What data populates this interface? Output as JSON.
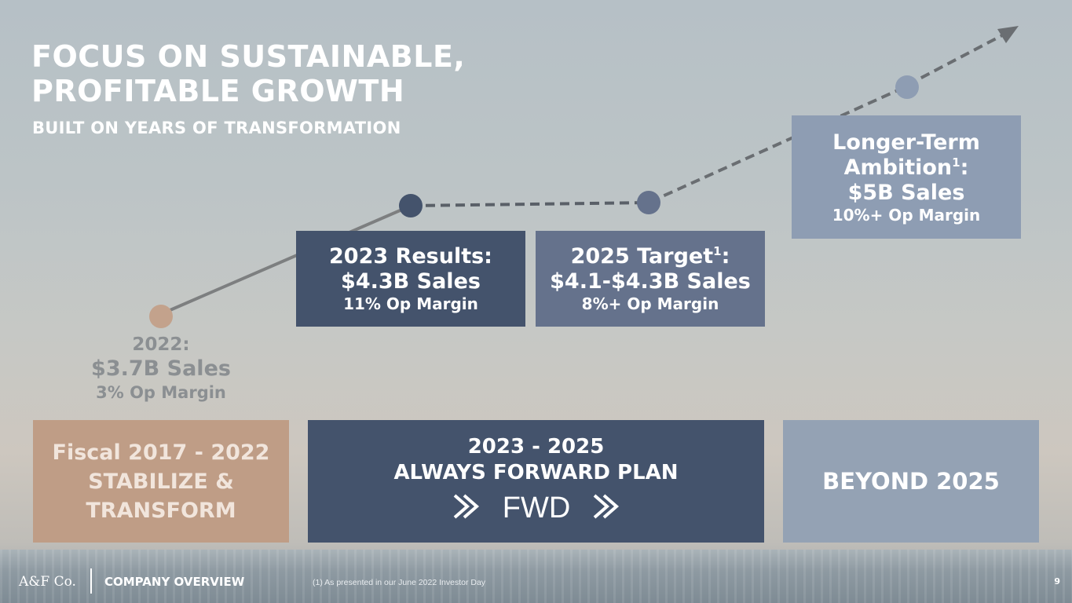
{
  "header": {
    "title_line1": "FOCUS ON SUSTAINABLE,",
    "title_line2": "PROFITABLE GROWTH",
    "subtitle": "BUILT ON YEARS OF TRANSFORMATION"
  },
  "milestones": {
    "y2022": {
      "label": "2022:",
      "sales": "$3.7B Sales",
      "margin": "3% Op Margin"
    },
    "y2023": {
      "label": "2023 Results:",
      "sales": "$4.3B Sales",
      "margin": "11% Op Margin"
    },
    "y2025": {
      "label": "2025 Target",
      "footnote_ref": "1",
      "label_suffix": ":",
      "sales": "$4.1-$4.3B Sales",
      "margin": "8%+ Op Margin"
    },
    "longer_term": {
      "line1": "Longer-Term",
      "line2": "Ambition",
      "footnote_ref": "1",
      "line2_suffix": ":",
      "sales": "$5B Sales",
      "margin": "10%+ Op Margin"
    }
  },
  "phases": {
    "p1": {
      "line1": "Fiscal 2017 - 2022",
      "line2": "STABILIZE &",
      "line3": "TRANSFORM"
    },
    "p2": {
      "line1": "2023 - 2025",
      "line2": "ALWAYS FORWARD PLAN",
      "logo_text": "FWD"
    },
    "p3": {
      "label": "BEYOND 2025"
    }
  },
  "footer": {
    "brand": "A&F Co.",
    "section": "COMPANY OVERVIEW",
    "footnote": "(1) As presented in our June 2022 Investor Day",
    "page": "9"
  },
  "colors": {
    "navy": "#44536c",
    "slate": "#65728c",
    "light_slate": "#8e9db3",
    "tan": "#bf9d86",
    "line_gray": "#7d7f80"
  }
}
